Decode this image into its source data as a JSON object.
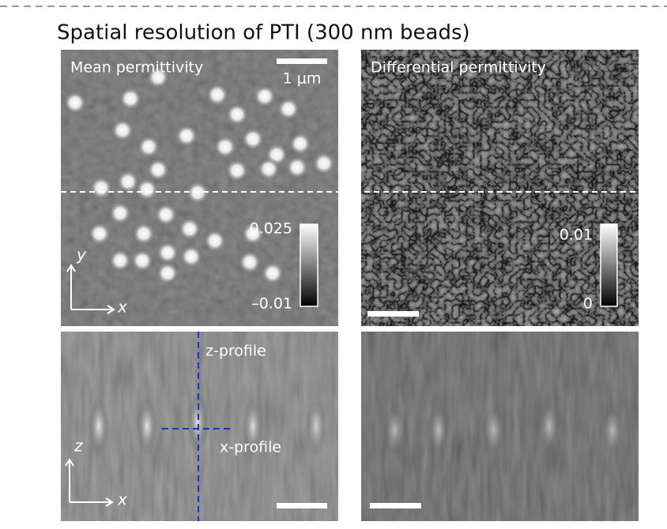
{
  "title": "Spatial resolution of PTI (300 nm beads)",
  "panels": [
    {
      "label": "Mean permittivity",
      "scale_bar": "1 μm",
      "colorbar": {
        "max": "0.025",
        "min": "–0.01"
      },
      "axes": {
        "vertical": "y",
        "horizontal": "x"
      }
    },
    {
      "label": "Differential permittivity",
      "colorbar": {
        "max": "0.01",
        "min": "0"
      }
    },
    {
      "profiles": {
        "vertical": "z-profile",
        "horizontal": "x-profile"
      },
      "axes": {
        "vertical": "z",
        "horizontal": "x"
      }
    }
  ]
}
